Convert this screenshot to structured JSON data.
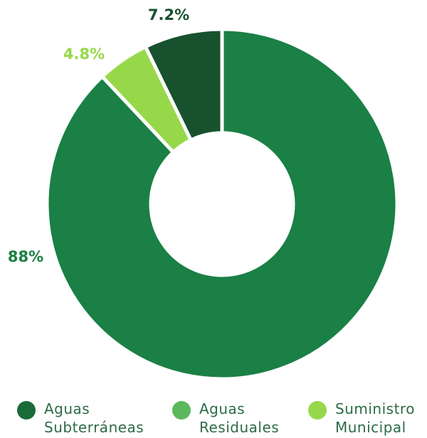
{
  "chart_data": {
    "type": "donut",
    "categories": [
      "Aguas Subterráneas",
      "Aguas Residuales",
      "Suministro Municipal"
    ],
    "values": [
      88,
      4.8,
      7.2
    ],
    "value_labels": [
      "88%",
      "4.8%",
      "7.2%"
    ],
    "colors": [
      "#1a8045",
      "#97d84a",
      "#17512e"
    ],
    "legend_colors": [
      "#1b6b3a",
      "#5cb85c",
      "#97d84a"
    ]
  }
}
